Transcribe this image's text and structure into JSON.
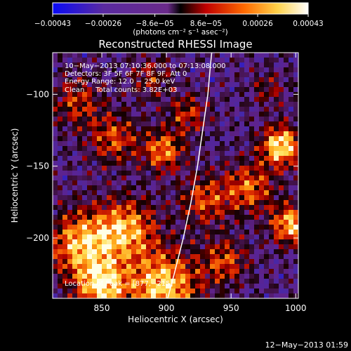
{
  "colorbar": {
    "min": -0.00043,
    "max": 0.00043,
    "ticks": [
      {
        "value": -0.00043,
        "label": "−0.00043"
      },
      {
        "value": -0.00026,
        "label": "−0.00026"
      },
      {
        "value": -8.6e-05,
        "label": "−8.6e−05"
      },
      {
        "value": 8.6e-05,
        "label": "8.6e−05"
      },
      {
        "value": 0.00026,
        "label": "0.00026"
      },
      {
        "value": 0.00043,
        "label": "0.00043"
      }
    ],
    "units_label": "(photons cm⁻² s⁻¹ asec⁻²)",
    "colors": [
      "#0a0af5",
      "#5a2aa0",
      "#6a2a8a",
      "#000000",
      "#c00000",
      "#ff6a00",
      "#ffd24a",
      "#ffffff"
    ]
  },
  "chart_data": {
    "type": "heatmap",
    "title": "Reconstructed RHESSI Image",
    "xlabel": "Heliocentric X (arcsec)",
    "ylabel": "Heliocentric Y (arcsec)",
    "xlim": [
      812,
      1002
    ],
    "ylim": [
      -242,
      -71
    ],
    "xticks": [
      {
        "value": 850,
        "label": "850"
      },
      {
        "value": 900,
        "label": "900"
      },
      {
        "value": 950,
        "label": "950"
      },
      {
        "value": 1000,
        "label": "1000"
      }
    ],
    "yticks": [
      {
        "value": -100,
        "label": "−100"
      },
      {
        "value": -150,
        "label": "−150"
      },
      {
        "value": -200,
        "label": "−200"
      }
    ],
    "grid": false,
    "limb_curve": [
      [
        935.0,
        -71
      ],
      [
        934.0,
        -80
      ],
      [
        932.0,
        -100
      ],
      [
        928.0,
        -125
      ],
      [
        924.0,
        -150
      ],
      [
        919.0,
        -175
      ],
      [
        913.0,
        -200
      ],
      [
        906.0,
        -225
      ],
      [
        901.0,
        -242
      ]
    ],
    "peak": [
      877,
      -215
    ],
    "annotations": [
      "10−May−2013 07:10:36.000 to 07:13:08.000",
      "Detectors: 3F 5F 6F 7F 8F 9F, Att 0",
      "Energy Range: 12.0 − 25.0 keV",
      "Clean     Total counts: 3.82E+03"
    ],
    "peak_label": "Location of Peak = [877,−215]"
  },
  "footer_timestamp": "12−May−2013 01:59"
}
